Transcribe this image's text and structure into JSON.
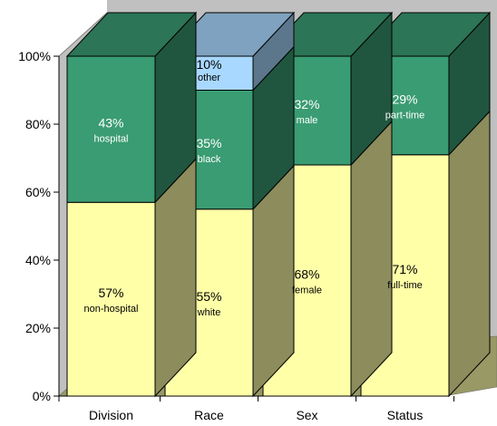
{
  "chart_data": {
    "type": "bar",
    "stacked": true,
    "three_d": true,
    "categories": [
      "Division",
      "Race",
      "Sex",
      "Status"
    ],
    "stacks": [
      {
        "category": "Division",
        "segments": [
          {
            "value": 57,
            "pct_label": "57%",
            "name": "non-hospital",
            "color": "#ffffa8"
          },
          {
            "value": 43,
            "pct_label": "43%",
            "name": "hospital",
            "color": "#3a9c72"
          }
        ]
      },
      {
        "category": "Race",
        "segments": [
          {
            "value": 55,
            "pct_label": "55%",
            "name": "white",
            "color": "#ffffa8"
          },
          {
            "value": 35,
            "pct_label": "35%",
            "name": "black",
            "color": "#3a9c72"
          },
          {
            "value": 10,
            "pct_label": "10%",
            "name": "other",
            "color": "#a8d8ff"
          }
        ]
      },
      {
        "category": "Sex",
        "segments": [
          {
            "value": 68,
            "pct_label": "68%",
            "name": "female",
            "color": "#ffffa8"
          },
          {
            "value": 32,
            "pct_label": "32%",
            "name": "male",
            "color": "#3a9c72"
          }
        ]
      },
      {
        "category": "Status",
        "segments": [
          {
            "value": 71,
            "pct_label": "71%",
            "name": "full-time",
            "color": "#ffffa8"
          },
          {
            "value": 29,
            "pct_label": "29%",
            "name": "part-time",
            "color": "#3a9c72"
          }
        ]
      }
    ],
    "y_ticks": [
      "0%",
      "20%",
      "40%",
      "60%",
      "80%",
      "100%"
    ],
    "ylim": [
      0,
      100
    ],
    "colors": {
      "yellow_front": "#ffffa8",
      "green_front": "#3a9c72",
      "blue_front": "#a8d8ff",
      "wall": "#c0c0c0",
      "floor": "#999966"
    }
  }
}
